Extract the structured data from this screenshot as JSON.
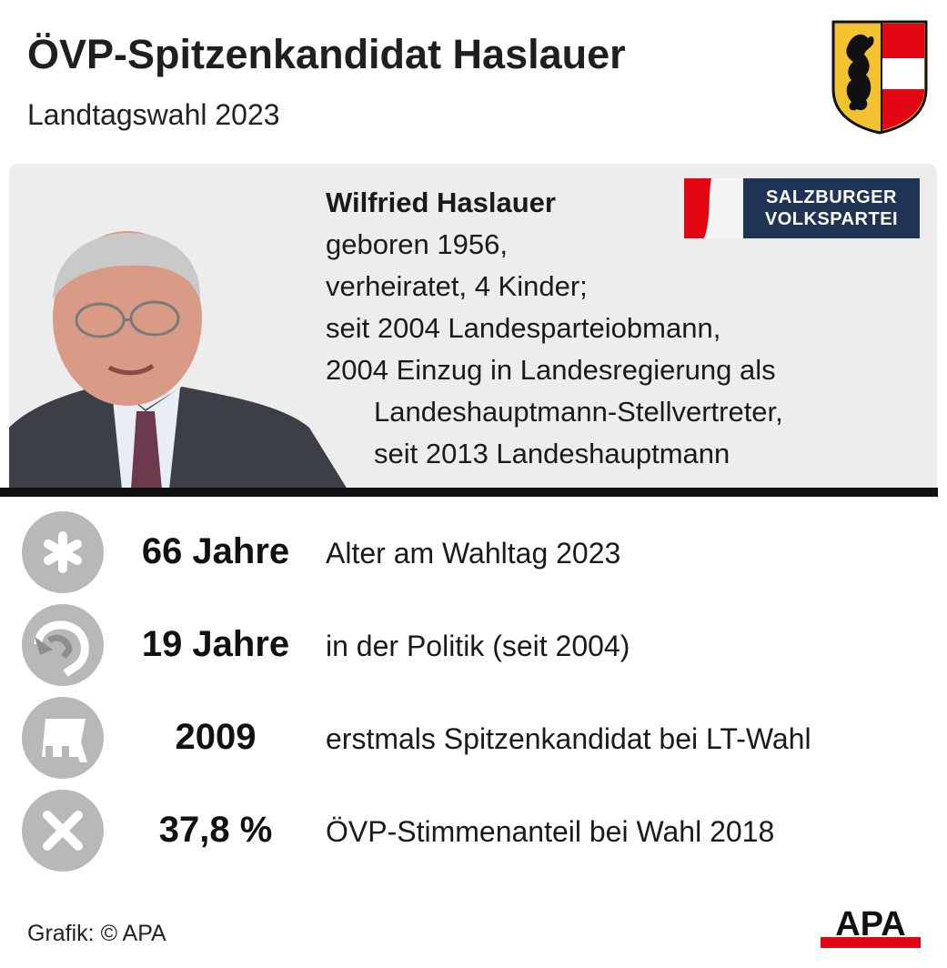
{
  "header": {
    "title": "ÖVP-Spitzenkandidat Haslauer",
    "subtitle": "Landtagswahl 2023"
  },
  "crest": {
    "icon": "salzburg-coat-of-arms-icon",
    "colors": {
      "gold": "#f2c230",
      "red": "#e30613",
      "black": "#111111"
    }
  },
  "bio": {
    "name": "Wilfried Haslauer",
    "lines": [
      "geboren 1956,",
      "verheiratet, 4 Kinder;",
      "seit 2004 Landesparteiobmann,",
      "2004 Einzug in Landesregierung als",
      "Landeshauptmann-Stellvertreter,",
      "seit 2013 Landeshauptmann"
    ]
  },
  "party_logo": {
    "line1": "SALZBURGER",
    "line2": "VOLKSPARTEI",
    "color": "#1f3455"
  },
  "facts": [
    {
      "icon": "asterisk-icon",
      "value": "66 Jahre",
      "label": "Alter am Wahltag 2023"
    },
    {
      "icon": "curved-arrow-icon",
      "value": "19 Jahre",
      "label": "in der Politik (seit 2004)"
    },
    {
      "icon": "ballot-board-icon",
      "value": "2009",
      "label": "erstmals Spitzenkandidat bei LT-Wahl"
    },
    {
      "icon": "ballot-cross-icon",
      "value": "37,8 %",
      "label": "ÖVP-Stimmenanteil bei Wahl 2018"
    }
  ],
  "footer": {
    "credit": "Grafik: © APA",
    "logo": "APA"
  }
}
